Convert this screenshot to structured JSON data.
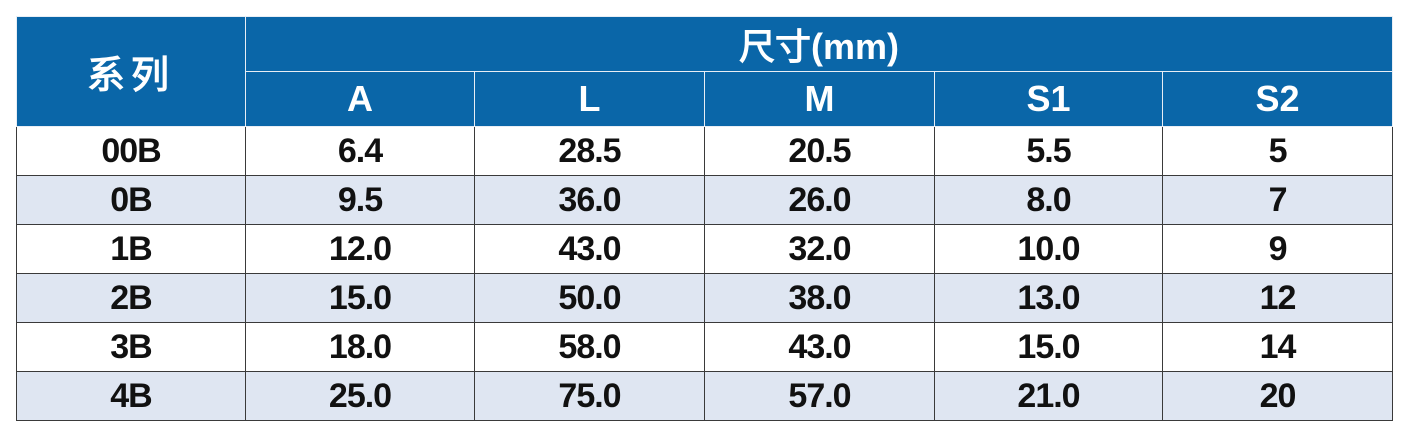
{
  "table": {
    "series_header": "系列",
    "group_header": "尺寸(mm)",
    "columns": [
      "A",
      "L",
      "M",
      "S1",
      "S2"
    ],
    "rows": [
      {
        "series": "00B",
        "values": [
          "6.4",
          "28.5",
          "20.5",
          "5.5",
          "5"
        ]
      },
      {
        "series": "0B",
        "values": [
          "9.5",
          "36.0",
          "26.0",
          "8.0",
          "7"
        ]
      },
      {
        "series": "1B",
        "values": [
          "12.0",
          "43.0",
          "32.0",
          "10.0",
          "9"
        ]
      },
      {
        "series": "2B",
        "values": [
          "15.0",
          "50.0",
          "38.0",
          "13.0",
          "12"
        ]
      },
      {
        "series": "3B",
        "values": [
          "18.0",
          "58.0",
          "43.0",
          "15.0",
          "14"
        ]
      },
      {
        "series": "4B",
        "values": [
          "25.0",
          "75.0",
          "57.0",
          "21.0",
          "20"
        ]
      }
    ]
  },
  "colors": {
    "header_bg": "#0a66a8",
    "header_text": "#ffffff",
    "stripe_bg": "#dfe6f2",
    "border": "#3a3a3a"
  }
}
